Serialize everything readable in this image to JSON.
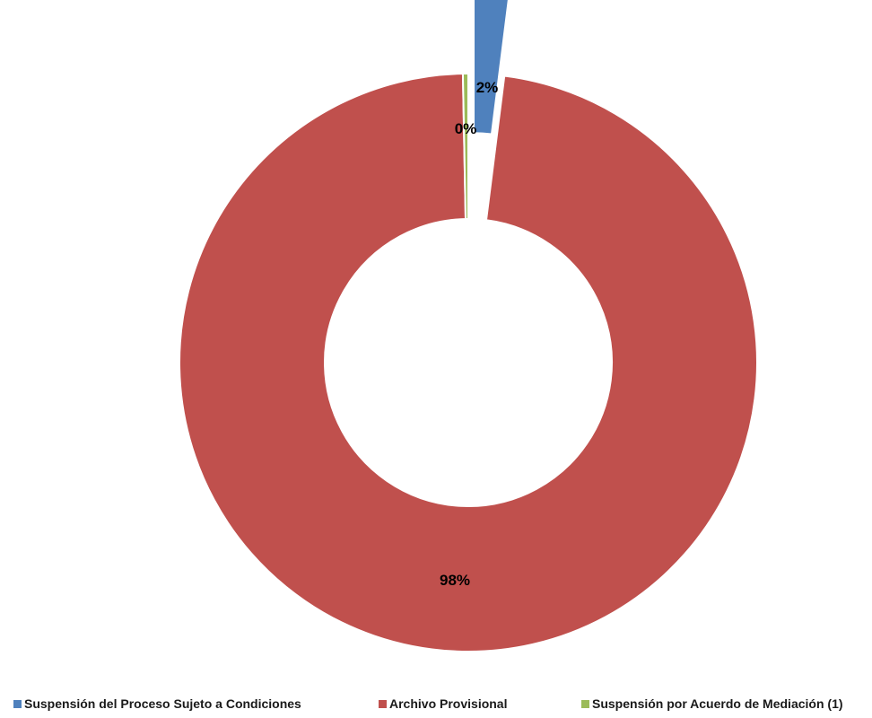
{
  "chart_data": {
    "type": "pie",
    "variant": "donut",
    "title": "",
    "series": [
      {
        "name": "Suspensión del Proceso Sujeto a Condiciones",
        "value": 2,
        "label": "2%",
        "color": "#4f81bd",
        "exploded": true
      },
      {
        "name": "Archivo Provisional",
        "value": 98,
        "label": "98%",
        "color": "#c0504d",
        "exploded": false
      },
      {
        "name": "Suspensión por Acuerdo de Mediación (1)",
        "value": 0.3,
        "label": "0%",
        "color": "#9bbb59",
        "exploded": false
      }
    ],
    "legend_position": "bottom"
  }
}
